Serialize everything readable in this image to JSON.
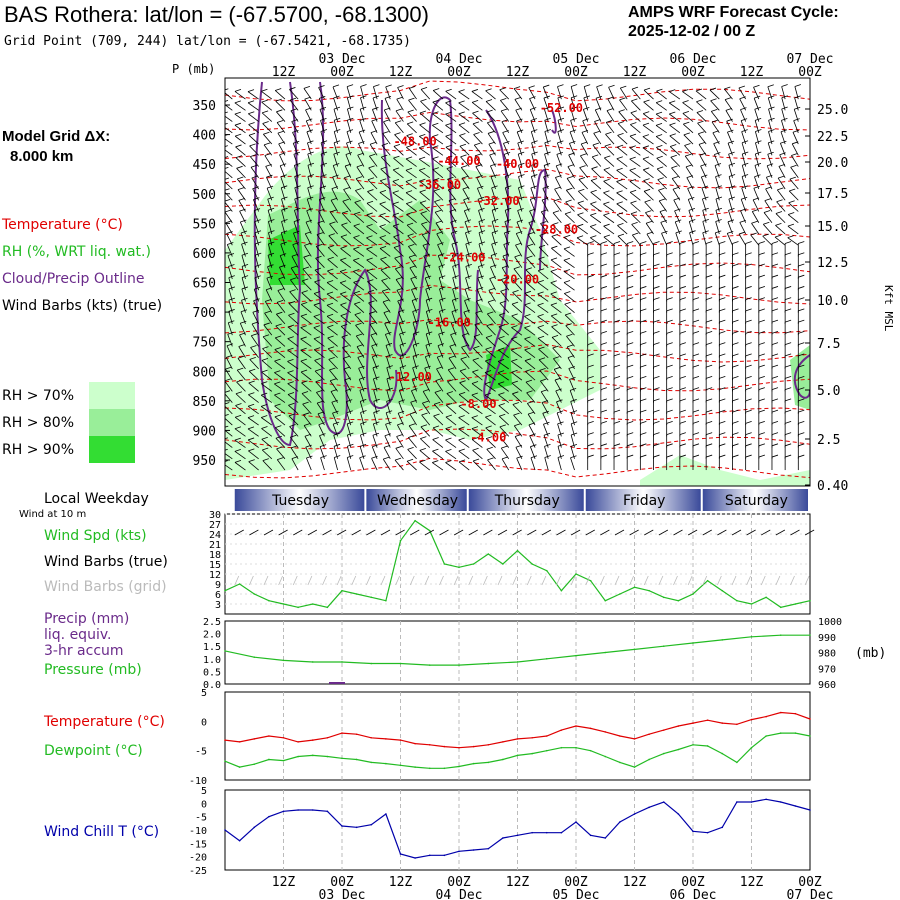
{
  "header": {
    "title": "BAS Rothera:  lat/lon = (-67.5700, -68.1300)",
    "subtitle": "Grid Point (709, 244) lat/lon = (-67.5421, -68.1735)",
    "cycle_line1": "AMPS WRF Forecast Cycle:",
    "cycle_line2": "2025-12-02 / 00  Z"
  },
  "grid_info": {
    "label": "Model Grid ΔX:",
    "value": "8.000 km"
  },
  "legend": {
    "temperature": "Temperature (°C)",
    "rh": "RH (%, WRT liq. wat.)",
    "cloud": "Cloud/Precip Outline",
    "wind_barbs": "Wind Barbs (kts) (true)",
    "rh70": "RH > 70%",
    "rh80": "RH > 80%",
    "rh90": "RH > 90%",
    "local_weekday": "Local Weekday",
    "wind_at_10m": "Wind at 10 m",
    "wind_spd": "Wind Spd (kts)",
    "barbs_true": "Wind Barbs (true)",
    "barbs_grid": "Wind Barbs (grid)",
    "precip": "Precip (mm)",
    "liq_equiv": "liq. equiv.",
    "accum": "3-hr accum",
    "pressure": "Pressure (mb)",
    "temp2": "Temperature (°C)",
    "dewpoint": "Dewpoint (°C)",
    "windchill": "Wind Chill T (°C)"
  },
  "colors": {
    "temperature": "#e00000",
    "rh70": "#ccffcc",
    "rh80": "#99ee99",
    "rh90": "#33dd33",
    "cloud": "#6a2a8a",
    "wind_spd": "#22bb22",
    "pressure": "#22bb22",
    "dewpoint": "#22bb22",
    "windchill": "#0000aa",
    "weekday_bar": "#3a4a9a",
    "barbs_grid": "#bbbbbb"
  },
  "chart_data": {
    "time_axis": {
      "hours": [
        0,
        12,
        24,
        36,
        48,
        60,
        72,
        84,
        96,
        108,
        120
      ],
      "hour_labels": [
        "",
        "12Z",
        "00Z",
        "12Z",
        "00Z",
        "12Z",
        "00Z",
        "12Z",
        "00Z",
        "12Z",
        "00Z"
      ],
      "date_labels": [
        "03 Dec",
        "04 Dec",
        "05 Dec",
        "06 Dec",
        "07 Dec"
      ],
      "date_hours": [
        24,
        48,
        72,
        96,
        120
      ]
    },
    "weekdays": [
      {
        "name": "Tuesday",
        "start": 2,
        "end": 29
      },
      {
        "name": "Wednesday",
        "start": 29,
        "end": 50
      },
      {
        "name": "Thursday",
        "start": 50,
        "end": 74
      },
      {
        "name": "Friday",
        "start": 74,
        "end": 98
      },
      {
        "name": "Saturday",
        "start": 98,
        "end": 120
      }
    ],
    "cross_section": {
      "type": "time-height",
      "p_label": "P (mb)",
      "right_label": "Kft MSL",
      "p_ticks": [
        350,
        400,
        450,
        500,
        550,
        600,
        650,
        700,
        750,
        800,
        850,
        900,
        950
      ],
      "kft_ticks": [
        "25.0",
        "22.5",
        "20.0",
        "17.5",
        "15.0",
        "12.5",
        "10.0",
        "7.5",
        "5.0",
        "2.5",
        "0.40"
      ],
      "temp_labels": [
        {
          "text": "-52.00",
          "h": 69,
          "p": 355
        },
        {
          "text": "-48.00",
          "h": 39,
          "p": 412
        },
        {
          "text": "-44.00",
          "h": 48,
          "p": 445
        },
        {
          "text": "-40.00",
          "h": 60,
          "p": 450
        },
        {
          "text": "-36.00",
          "h": 44,
          "p": 485
        },
        {
          "text": "-32.00",
          "h": 56,
          "p": 512
        },
        {
          "text": "-28.00",
          "h": 68,
          "p": 560
        },
        {
          "text": "-24.00",
          "h": 49,
          "p": 608
        },
        {
          "text": "-20.00",
          "h": 60,
          "p": 645
        },
        {
          "text": "-16.00",
          "h": 46,
          "p": 718
        },
        {
          "text": "-12.00",
          "h": 38,
          "p": 810
        },
        {
          "text": "-8.00",
          "h": 52,
          "p": 855
        },
        {
          "text": "-4.00",
          "h": 54,
          "p": 912
        }
      ]
    },
    "wind_speed": {
      "ylim": [
        0,
        30
      ],
      "yticks": [
        3,
        6,
        9,
        12,
        15,
        18,
        21,
        24,
        27,
        30
      ],
      "x": [
        0,
        3,
        6,
        9,
        12,
        15,
        18,
        21,
        24,
        27,
        30,
        33,
        36,
        39,
        42,
        45,
        48,
        51,
        54,
        57,
        60,
        63,
        66,
        69,
        72,
        75,
        78,
        81,
        84,
        87,
        90,
        93,
        96,
        99,
        102,
        105,
        108,
        111,
        114,
        117,
        120
      ],
      "values": [
        7,
        9,
        6,
        4,
        3,
        2,
        3,
        2,
        7,
        6,
        5,
        4,
        22,
        28,
        25,
        15,
        14,
        15,
        18,
        15,
        19,
        15,
        13,
        7,
        12,
        10,
        4,
        6,
        8,
        7,
        5,
        4,
        6,
        10,
        7,
        4,
        3,
        5,
        2,
        3,
        4
      ]
    },
    "pressure": {
      "ylim": [
        960,
        1000
      ],
      "yticks": [
        960,
        970,
        980,
        990,
        1000
      ],
      "precip_ticks": [
        "0.0",
        "0.5",
        "1.0",
        "1.5",
        "2.0",
        "2.5"
      ],
      "unit": "(mb)",
      "x": [
        0,
        6,
        12,
        18,
        24,
        30,
        36,
        42,
        48,
        54,
        60,
        66,
        72,
        78,
        84,
        90,
        96,
        102,
        108,
        114,
        120
      ],
      "values": [
        981,
        977,
        975,
        974,
        974,
        973,
        973,
        972,
        972,
        973,
        974,
        976,
        978,
        980,
        982,
        984,
        986,
        988,
        990,
        991,
        991
      ]
    },
    "temperature": {
      "ylim": [
        -10,
        5
      ],
      "yticks": [
        -10,
        -5,
        0,
        5
      ],
      "x": [
        0,
        3,
        6,
        9,
        12,
        15,
        18,
        21,
        24,
        27,
        30,
        33,
        36,
        39,
        42,
        45,
        48,
        51,
        54,
        57,
        60,
        63,
        66,
        69,
        72,
        75,
        78,
        81,
        84,
        87,
        90,
        93,
        96,
        99,
        102,
        105,
        108,
        111,
        114,
        117,
        120
      ],
      "temp": [
        -3.2,
        -3.5,
        -3.0,
        -2.5,
        -2.8,
        -3.5,
        -3.2,
        -2.8,
        -2.0,
        -2.2,
        -2.8,
        -3.0,
        -3.2,
        -3.8,
        -4.0,
        -4.3,
        -4.5,
        -4.3,
        -4.0,
        -3.5,
        -3.0,
        -2.8,
        -2.5,
        -1.5,
        -0.8,
        -1.2,
        -1.8,
        -2.5,
        -3.0,
        -2.2,
        -1.5,
        -0.8,
        -0.3,
        0.2,
        -0.3,
        -0.5,
        0.3,
        0.8,
        1.5,
        1.3,
        0.4
      ],
      "dewpoint": [
        -6.8,
        -7.8,
        -7.3,
        -6.5,
        -6.7,
        -6.0,
        -5.8,
        -6.0,
        -6.3,
        -6.5,
        -7.0,
        -7.2,
        -7.5,
        -7.8,
        -8.0,
        -8.0,
        -7.7,
        -7.2,
        -7.0,
        -6.5,
        -5.8,
        -5.5,
        -5.0,
        -4.5,
        -4.5,
        -5.0,
        -6.0,
        -7.0,
        -7.8,
        -6.5,
        -5.5,
        -4.8,
        -4.0,
        -4.2,
        -5.5,
        -7.0,
        -4.5,
        -2.5,
        -2.0,
        -2.0,
        -2.5
      ]
    },
    "wind_chill": {
      "ylim": [
        -25,
        5
      ],
      "yticks": [
        -25,
        -20,
        -15,
        -10,
        -5,
        0,
        5
      ],
      "x": [
        0,
        3,
        6,
        9,
        12,
        15,
        18,
        21,
        24,
        27,
        30,
        33,
        36,
        39,
        42,
        45,
        48,
        51,
        54,
        57,
        60,
        63,
        66,
        69,
        72,
        75,
        78,
        81,
        84,
        87,
        90,
        93,
        96,
        99,
        102,
        105,
        108,
        111,
        114,
        117,
        120
      ],
      "values": [
        -10,
        -14,
        -9,
        -5,
        -3,
        -2.5,
        -2.5,
        -3,
        -8.5,
        -9,
        -8,
        -4,
        -19,
        -20.5,
        -19.5,
        -19.5,
        -18,
        -17.5,
        -17,
        -13,
        -12,
        -11,
        -11,
        -11,
        -7,
        -12,
        -13,
        -7,
        -4,
        -1.5,
        0.5,
        -4,
        -10.5,
        -11,
        -9,
        0.5,
        0.5,
        1.5,
        0.5,
        -1,
        -2.5
      ]
    }
  }
}
